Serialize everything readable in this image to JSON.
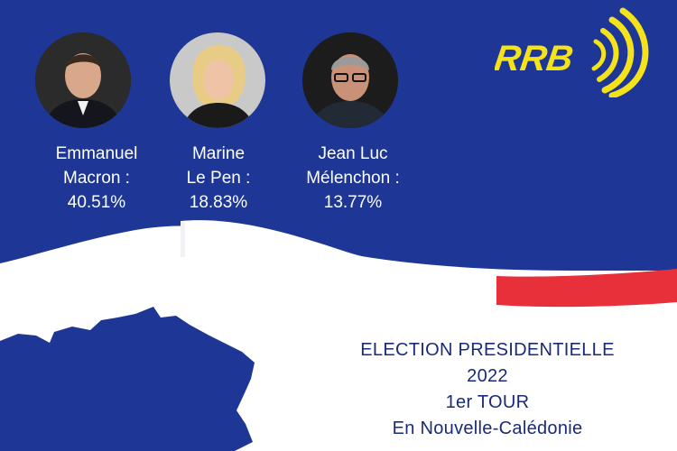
{
  "candidates": [
    {
      "first": "Emmanuel",
      "last": "Macron :",
      "percent": "40.51%",
      "photo_icon": "portrait-macron"
    },
    {
      "first": "Marine",
      "last": "Le Pen :",
      "percent": "18.83%",
      "photo_icon": "portrait-le-pen"
    },
    {
      "first": "Jean Luc",
      "last": "Mélenchon :",
      "percent": "13.77%",
      "photo_icon": "portrait-melenchon"
    }
  ],
  "logo": {
    "text": "RRB"
  },
  "title": {
    "line1": "ELECTION PRESIDENTIELLE",
    "line2": "2022",
    "line3": "1er TOUR",
    "line4": "En Nouvelle-Calédonie"
  },
  "colors": {
    "blue": "#1e3796",
    "red": "#e8303a",
    "white": "#ffffff",
    "logo_yellow": "#f4e21a",
    "title_text": "#1a2a7a"
  }
}
